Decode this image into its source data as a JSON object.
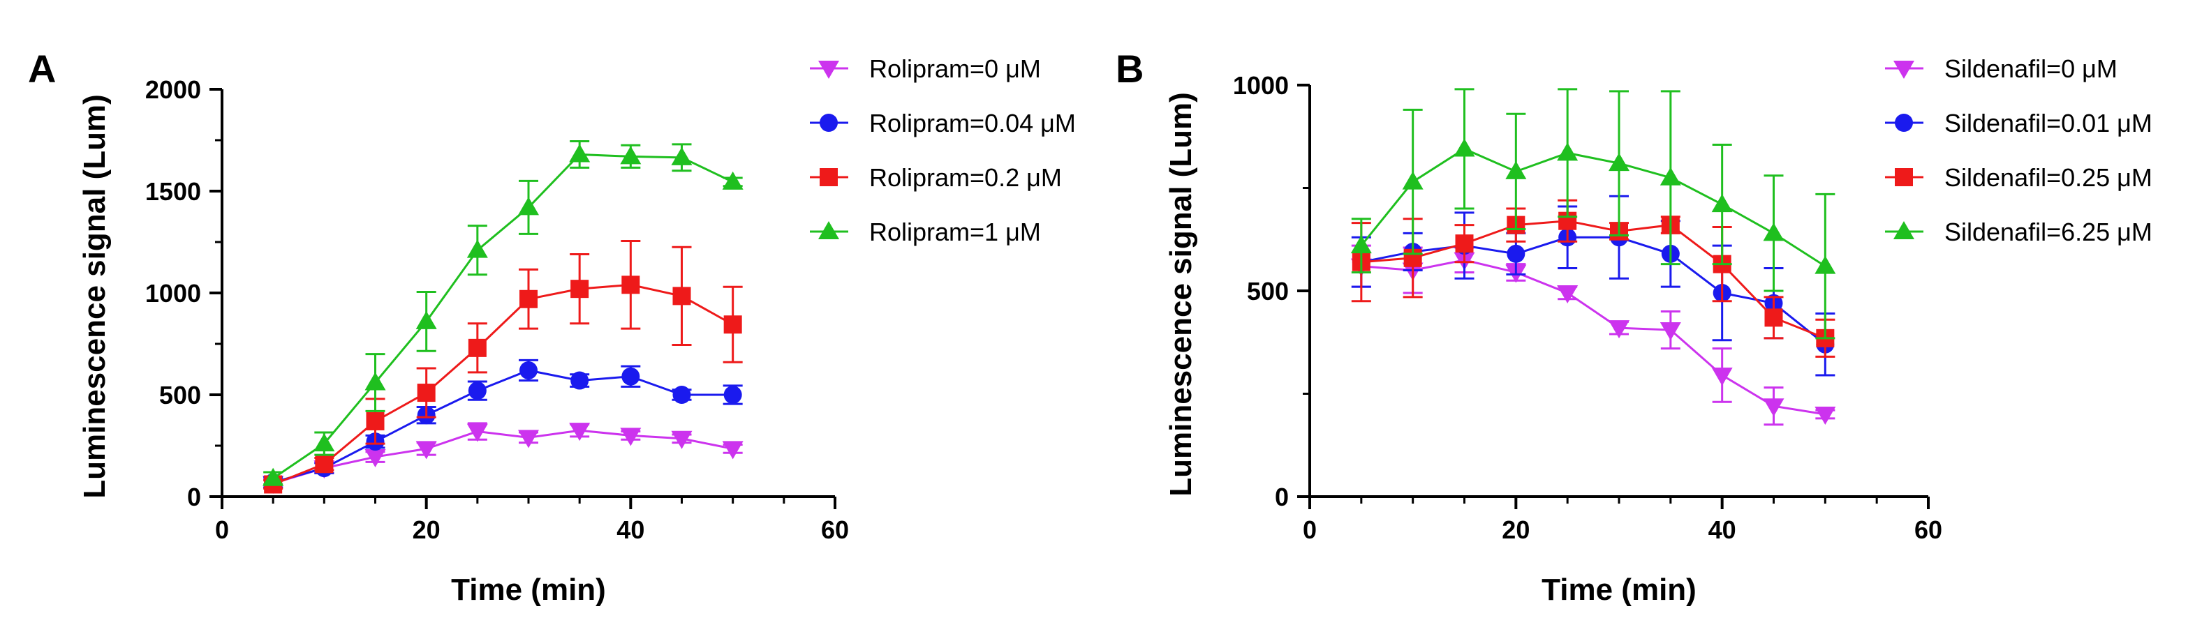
{
  "chart_data": [
    {
      "panel": "A",
      "type": "line",
      "title": "",
      "xlabel": "Time (min)",
      "ylabel": "Luminescence signal (Lum)",
      "xlim": [
        0,
        60
      ],
      "ylim": [
        0,
        2000
      ],
      "xticks": [
        0,
        20,
        40,
        60
      ],
      "yticks": [
        0,
        500,
        1000,
        1500,
        2000
      ],
      "legend_position": "right",
      "x": [
        5,
        10,
        15,
        20,
        25,
        30,
        35,
        40,
        45,
        50
      ],
      "series": [
        {
          "name": "Rolipram=0 μM",
          "color": "#CC33EE",
          "marker": "triangle-down",
          "values": [
            65,
            140,
            195,
            235,
            320,
            290,
            325,
            300,
            285,
            235
          ],
          "errors": [
            20,
            25,
            25,
            30,
            40,
            25,
            30,
            20,
            20,
            20
          ]
        },
        {
          "name": "Rolipram=0.04 μM",
          "color": "#1A1AEE",
          "marker": "circle",
          "values": [
            70,
            140,
            270,
            400,
            520,
            620,
            570,
            590,
            500,
            500
          ],
          "errors": [
            25,
            25,
            30,
            40,
            45,
            50,
            30,
            50,
            25,
            45
          ]
        },
        {
          "name": "Rolipram=0.2 μM",
          "color": "#EE1A1A",
          "marker": "square",
          "values": [
            60,
            160,
            370,
            510,
            730,
            970,
            1020,
            1040,
            985,
            845
          ],
          "errors": [
            20,
            30,
            110,
            120,
            120,
            145,
            170,
            215,
            240,
            185
          ]
        },
        {
          "name": "Rolipram=1 μM",
          "color": "#1FBF1F",
          "marker": "triangle-up",
          "values": [
            90,
            260,
            560,
            860,
            1210,
            1420,
            1680,
            1670,
            1665,
            1545
          ],
          "errors": [
            30,
            55,
            140,
            145,
            120,
            130,
            65,
            55,
            65,
            20
          ]
        }
      ]
    },
    {
      "panel": "B",
      "type": "line",
      "title": "",
      "xlabel": "Time (min)",
      "ylabel": "Luminescence signal (Lum)",
      "xlim": [
        0,
        60
      ],
      "ylim": [
        0,
        1000
      ],
      "xticks": [
        0,
        20,
        40,
        60
      ],
      "yticks": [
        0,
        500,
        1000
      ],
      "legend_position": "right",
      "x": [
        5,
        10,
        15,
        20,
        25,
        30,
        35,
        40,
        45,
        50
      ],
      "series": [
        {
          "name": "Sildenafil=0 μM",
          "color": "#CC33EE",
          "marker": "triangle-down",
          "values": [
            560,
            550,
            575,
            545,
            495,
            410,
            405,
            295,
            220,
            200
          ],
          "errors": [
            50,
            55,
            30,
            20,
            15,
            15,
            45,
            65,
            45,
            10
          ]
        },
        {
          "name": "Sildenafil=0.01 μM",
          "color": "#1A1AEE",
          "marker": "circle",
          "values": [
            570,
            595,
            610,
            590,
            630,
            630,
            590,
            495,
            470,
            370
          ],
          "errors": [
            60,
            45,
            80,
            50,
            75,
            100,
            80,
            115,
            85,
            75
          ]
        },
        {
          "name": "Sildenafil=0.25 μM",
          "color": "#EE1A1A",
          "marker": "square",
          "values": [
            570,
            580,
            615,
            660,
            670,
            645,
            660,
            565,
            435,
            385
          ],
          "errors": [
            95,
            95,
            45,
            40,
            50,
            20,
            20,
            90,
            50,
            45
          ]
        },
        {
          "name": "Sildenafil=6.25 μM",
          "color": "#1FBF1F",
          "marker": "triangle-up",
          "values": [
            610,
            765,
            845,
            790,
            835,
            810,
            775,
            710,
            640,
            560
          ],
          "errors": [
            65,
            175,
            145,
            140,
            155,
            175,
            210,
            145,
            140,
            175
          ]
        }
      ]
    }
  ]
}
